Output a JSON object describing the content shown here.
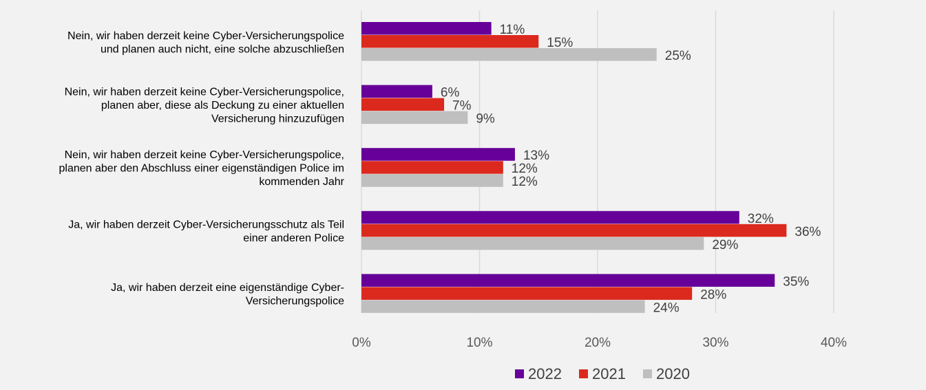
{
  "chart_data": {
    "type": "bar",
    "orientation": "horizontal",
    "categories": [
      [
        "Nein, wir haben derzeit keine Cyber-Versicherungspolice",
        "und planen auch nicht, eine solche abzuschließen"
      ],
      [
        "Nein, wir haben derzeit keine Cyber-Versicherungspolice,",
        "planen aber, diese als Deckung zu einer aktuellen",
        "Versicherung hinzuzufügen"
      ],
      [
        "Nein, wir haben derzeit keine Cyber-Versicherungspolice,",
        "planen aber den Abschluss einer eigenständigen Police im",
        "kommenden Jahr"
      ],
      [
        "Ja, wir haben derzeit Cyber-Versicherungsschutz als Teil",
        "einer anderen Police"
      ],
      [
        "Ja, wir haben derzeit eine eigenständige Cyber-",
        "Versicherungspolice"
      ]
    ],
    "series": [
      {
        "name": "2022",
        "color": "#660099",
        "values": [
          11,
          6,
          13,
          32,
          35
        ]
      },
      {
        "name": "2021",
        "color": "#dc291e",
        "values": [
          15,
          7,
          12,
          36,
          28
        ]
      },
      {
        "name": "2020",
        "color": "#bfbfbf",
        "values": [
          25,
          9,
          12,
          29,
          24
        ]
      }
    ],
    "xlim": [
      0,
      40
    ],
    "xticks": [
      "0%",
      "10%",
      "20%",
      "30%",
      "40%"
    ],
    "value_suffix": "%",
    "grid": "vertical",
    "legend": "bottom"
  }
}
